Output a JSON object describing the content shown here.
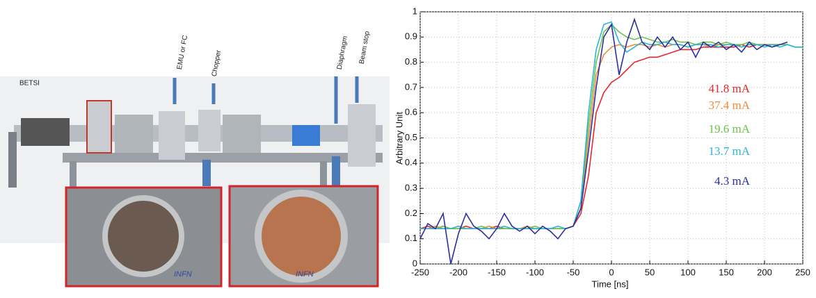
{
  "image": {
    "labels": [
      "BETSI",
      "EMU or FC",
      "Chopper",
      "Diaphragm",
      "Beam stop"
    ],
    "logos": [
      "INFN",
      "INFN"
    ]
  },
  "chart_data": {
    "type": "line",
    "xlabel": "Time [ns]",
    "ylabel": "Arbitrary Unit",
    "x": [
      -250,
      -240,
      -230,
      -220,
      -210,
      -200,
      -190,
      -180,
      -170,
      -160,
      -150,
      -140,
      -130,
      -120,
      -110,
      -100,
      -90,
      -80,
      -70,
      -60,
      -50,
      -40,
      -30,
      -20,
      -10,
      0,
      10,
      20,
      30,
      40,
      50,
      60,
      70,
      80,
      90,
      100,
      110,
      120,
      130,
      140,
      150,
      160,
      170,
      180,
      190,
      200,
      210,
      220,
      230,
      240,
      250
    ],
    "series": [
      {
        "name": "41.8 mA",
        "color": "#e8262b",
        "values": [
          0.14,
          0.15,
          0.14,
          0.15,
          0.14,
          0.14,
          0.15,
          0.14,
          0.14,
          0.14,
          0.15,
          0.14,
          0.14,
          0.14,
          0.14,
          0.14,
          0.14,
          0.14,
          0.14,
          0.14,
          0.15,
          0.2,
          0.35,
          0.6,
          0.68,
          0.72,
          0.74,
          0.77,
          0.8,
          0.81,
          0.82,
          0.82,
          0.83,
          0.84,
          0.85,
          0.85,
          0.85,
          0.86,
          0.86,
          0.86,
          0.86,
          0.86,
          0.87,
          0.86,
          0.87,
          0.87,
          0.87,
          0.87,
          0.87,
          null,
          null
        ]
      },
      {
        "name": "37.4 mA",
        "color": "#f08a3c",
        "values": [
          0.14,
          0.14,
          0.15,
          0.14,
          0.14,
          0.15,
          0.14,
          0.14,
          0.14,
          0.15,
          0.14,
          0.14,
          0.14,
          0.14,
          0.15,
          0.14,
          0.14,
          0.14,
          0.14,
          0.14,
          0.15,
          0.22,
          0.5,
          0.75,
          0.83,
          0.86,
          0.87,
          0.86,
          0.87,
          0.87,
          0.86,
          0.87,
          0.86,
          0.87,
          0.87,
          0.86,
          0.87,
          0.87,
          0.86,
          0.87,
          0.87,
          0.87,
          0.86,
          0.87,
          0.87,
          0.87,
          0.86,
          0.87,
          0.87,
          null,
          null
        ]
      },
      {
        "name": "19.6 mA",
        "color": "#6cc24a",
        "values": [
          0.14,
          0.14,
          0.14,
          0.15,
          0.14,
          0.14,
          0.14,
          0.14,
          0.15,
          0.14,
          0.14,
          0.14,
          0.14,
          0.14,
          0.14,
          0.15,
          0.14,
          0.14,
          0.14,
          0.14,
          0.15,
          0.25,
          0.55,
          0.8,
          0.92,
          0.95,
          0.92,
          0.9,
          0.89,
          0.9,
          0.89,
          0.88,
          0.88,
          0.89,
          0.88,
          0.88,
          0.87,
          0.88,
          0.88,
          0.87,
          0.88,
          0.87,
          0.87,
          0.88,
          0.87,
          0.87,
          0.87,
          0.87,
          0.87,
          0.86,
          0.86
        ]
      },
      {
        "name": "13.7 mA",
        "color": "#2bb5d8",
        "values": [
          0.14,
          0.14,
          0.14,
          0.14,
          0.14,
          0.15,
          0.14,
          0.14,
          0.14,
          0.14,
          0.14,
          0.15,
          0.14,
          0.14,
          0.14,
          0.14,
          0.14,
          0.14,
          0.15,
          0.14,
          0.15,
          0.25,
          0.6,
          0.85,
          0.95,
          0.96,
          0.88,
          0.84,
          0.86,
          0.88,
          0.87,
          0.87,
          0.88,
          0.87,
          0.87,
          0.86,
          0.87,
          0.87,
          0.87,
          0.86,
          0.87,
          0.87,
          0.86,
          0.87,
          0.87,
          0.86,
          0.87,
          0.86,
          0.87,
          0.86,
          0.86
        ]
      },
      {
        "name": "4.3 mA",
        "color": "#2b2f9e",
        "values": [
          0.1,
          0.16,
          0.14,
          0.2,
          0.0,
          0.12,
          0.2,
          0.15,
          0.13,
          0.1,
          0.14,
          0.2,
          0.15,
          0.13,
          0.15,
          0.12,
          0.15,
          0.13,
          0.1,
          0.14,
          0.15,
          0.22,
          0.45,
          0.7,
          0.9,
          0.95,
          0.75,
          0.88,
          0.97,
          0.88,
          0.85,
          0.9,
          0.86,
          0.9,
          0.85,
          0.88,
          0.82,
          0.88,
          0.86,
          0.88,
          0.85,
          0.87,
          0.84,
          0.88,
          0.85,
          0.87,
          0.86,
          0.87,
          0.88,
          null,
          null
        ]
      }
    ],
    "xlim": [
      -250,
      250
    ],
    "xticks": [
      -250,
      -200,
      -150,
      -100,
      -50,
      0,
      50,
      100,
      150,
      200,
      250
    ],
    "ylim": [
      0,
      1
    ],
    "yticks": [
      0,
      0.1,
      0.2,
      0.3,
      0.4,
      0.5,
      0.6,
      0.7,
      0.8,
      0.9,
      1
    ],
    "grid": true,
    "legend": "right"
  }
}
